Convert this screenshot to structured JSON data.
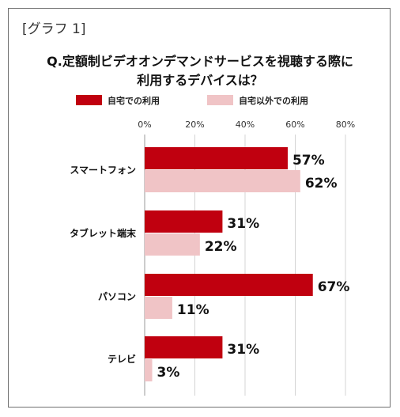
{
  "header": {
    "tag": "[グラフ 1]"
  },
  "chart_data": {
    "type": "bar",
    "orientation": "horizontal",
    "title_lines": [
      "Q.定額制ビデオオンデマンドサービスを視聴する際に",
      "利用するデバイスは？"
    ],
    "categories": [
      "スマートフォン",
      "タブレット端末",
      "パソコン",
      "テレビ"
    ],
    "series": [
      {
        "name": "自宅での利用",
        "values": [
          57,
          31,
          67,
          31
        ],
        "color": "#c0000f"
      },
      {
        "name": "自宅以外での利用",
        "values": [
          62,
          22,
          11,
          3
        ],
        "color": "#f0c4c6"
      }
    ],
    "xlim": [
      0,
      80
    ],
    "xticks": [
      "0%",
      "20%",
      "40%",
      "60%",
      "80%"
    ],
    "value_suffix": "%",
    "legend_position": "top",
    "grid": true,
    "xlabel": "",
    "ylabel": ""
  }
}
